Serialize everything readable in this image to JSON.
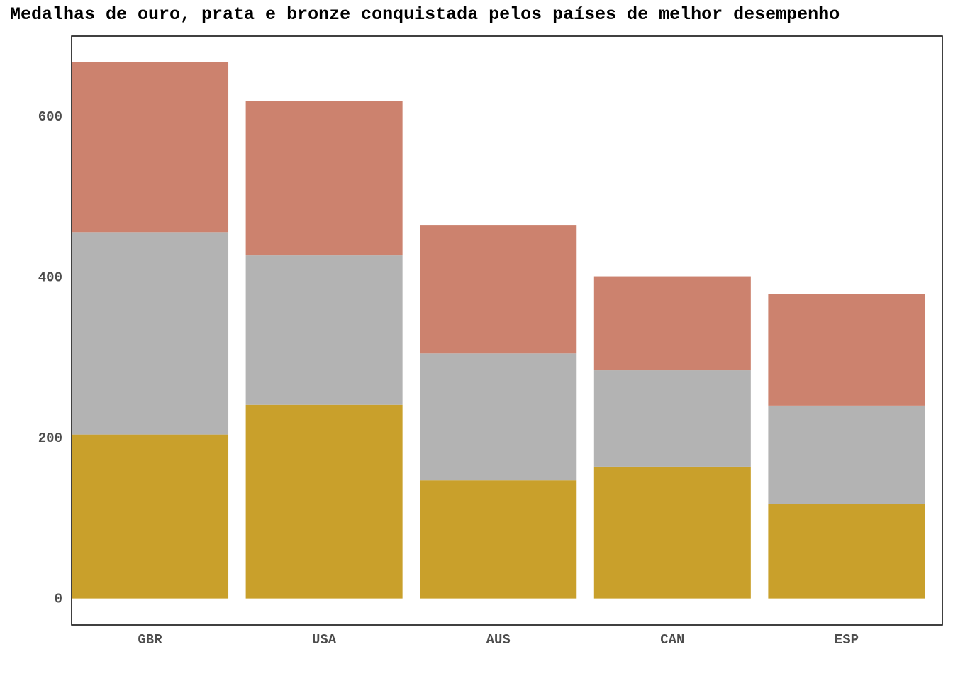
{
  "chart_data": {
    "type": "bar",
    "stacked": true,
    "title": "Medalhas de ouro, prata e bronze conquistada pelos países de melhor desempenho",
    "xlabel": "",
    "ylabel": "",
    "categories": [
      "GBR",
      "USA",
      "AUS",
      "CAN",
      "ESP"
    ],
    "series": [
      {
        "values": [
          204,
          241,
          147,
          164,
          118
        ],
        "color": "#C9A02B"
      },
      {
        "values": [
          252,
          186,
          158,
          120,
          122
        ],
        "color": "#B3B3B3"
      },
      {
        "values": [
          212,
          192,
          160,
          117,
          139
        ],
        "color": "#CC826E"
      }
    ],
    "ylim": [
      -33,
      700
    ],
    "yticks": [
      0,
      200,
      400,
      600
    ],
    "grid": false,
    "legend": "none"
  }
}
